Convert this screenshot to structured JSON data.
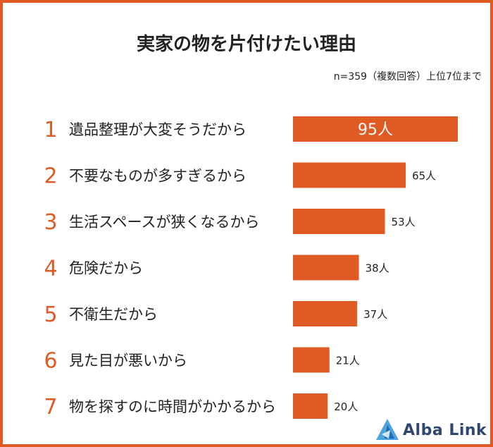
{
  "colors": {
    "accent": "#e05a24",
    "text": "#222222",
    "logo": "#2f4770"
  },
  "header": {
    "title": "実家の物を片付けたい理由",
    "subtitle": "n=359（複数回答）上位7位まで"
  },
  "logo": {
    "text": "Alba Link",
    "icon": "alba-link-logo-icon"
  },
  "chart_data": {
    "type": "bar",
    "orientation": "horizontal",
    "title": "実家の物を片付けたい理由",
    "subtitle": "n=359（複数回答）上位7位まで",
    "ranks": [
      "1",
      "2",
      "3",
      "4",
      "5",
      "6",
      "7"
    ],
    "categories": [
      "遺品整理が大変そうだから",
      "不要なものが多すぎるから",
      "生活スペースが狭くなるから",
      "危険だから",
      "不衛生だから",
      "見た目が悪いから",
      "物を探すのに時間がかかるから"
    ],
    "values": [
      95,
      65,
      53,
      38,
      37,
      21,
      20
    ],
    "value_labels": [
      "95人",
      "65人",
      "53人",
      "38人",
      "37人",
      "21人",
      "20人"
    ],
    "unit": "人",
    "xlim": [
      0,
      95
    ],
    "grid": false,
    "legend": "none"
  }
}
